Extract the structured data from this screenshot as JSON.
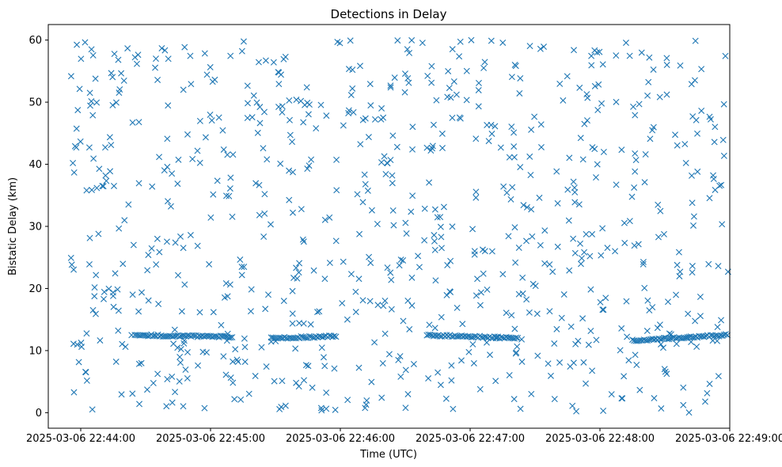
{
  "chart_data": {
    "type": "scatter",
    "title": "Detections in Delay",
    "xlabel": "Time (UTC)",
    "ylabel": "Bistatic Delay (km)",
    "marker": "x",
    "color": "#1f77b4",
    "xlim": [
      "2025-03-06 22:43:45",
      "2025-03-06 22:49:00"
    ],
    "ylim": [
      -2.5,
      62.5
    ],
    "xticks": [
      "2025-03-06 22:44:00",
      "2025-03-06 22:45:00",
      "2025-03-06 22:46:00",
      "2025-03-06 22:47:00",
      "2025-03-06 22:48:00",
      "2025-03-06 22:49:00"
    ],
    "yticks": [
      0,
      10,
      20,
      30,
      40,
      50,
      60
    ],
    "x_range_seconds": [
      -5,
      305
    ],
    "y_range": [
      0,
      60
    ],
    "random_point_count": 820,
    "series": [
      {
        "name": "detections",
        "tracks": [
          {
            "x_seconds": [
              25,
              70
            ],
            "y": [
              12.5,
              12.2
            ]
          },
          {
            "x_seconds": [
              88,
              118
            ],
            "y": [
              12.0,
              12.3
            ]
          },
          {
            "x_seconds": [
              160,
              202
            ],
            "y": [
              12.5,
              12.0
            ]
          },
          {
            "x_seconds": [
              255,
              302
            ],
            "y": [
              11.6,
              12.6
            ]
          }
        ],
        "random_points_seed": 20250306
      }
    ]
  }
}
